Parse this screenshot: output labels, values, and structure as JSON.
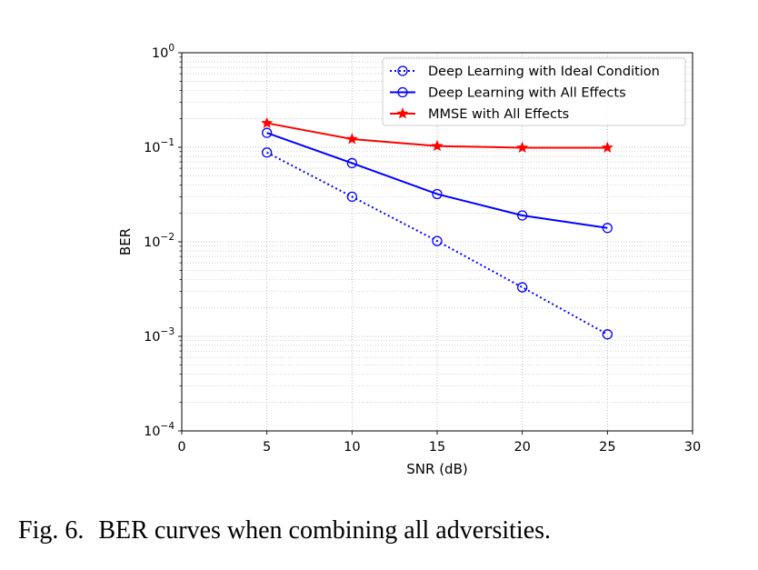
{
  "chart_data": {
    "type": "line",
    "xlabel": "SNR (dB)",
    "ylabel": "BER",
    "xlim": [
      0,
      30
    ],
    "ylim": [
      0.0001,
      1
    ],
    "yscale": "log",
    "grid": true,
    "legend_position": "top-right",
    "x_ticks": [
      0,
      5,
      10,
      15,
      20,
      25,
      30
    ],
    "y_ticks": [
      {
        "base": "10",
        "exp": "0",
        "value": 1
      },
      {
        "base": "10",
        "exp": "−1",
        "value": 0.1
      },
      {
        "base": "10",
        "exp": "−2",
        "value": 0.01
      },
      {
        "base": "10",
        "exp": "−3",
        "value": 0.001
      },
      {
        "base": "10",
        "exp": "−4",
        "value": 0.0001
      }
    ],
    "x": [
      5,
      10,
      15,
      20,
      25
    ],
    "series": [
      {
        "name": "Deep Learning with Ideal Condition",
        "values": [
          0.088,
          0.03,
          0.0102,
          0.0033,
          0.00105
        ],
        "color": "#0000ff",
        "line_style": "dotted",
        "marker": "circle"
      },
      {
        "name": "Deep Learning with All Effects",
        "values": [
          0.142,
          0.068,
          0.032,
          0.019,
          0.014
        ],
        "color": "#0000ff",
        "line_style": "solid",
        "marker": "circle"
      },
      {
        "name": "MMSE with All Effects",
        "values": [
          0.18,
          0.122,
          0.103,
          0.099,
          0.099
        ],
        "color": "#ff0000",
        "line_style": "solid",
        "marker": "star"
      }
    ]
  },
  "caption": {
    "label": "Fig. 6.",
    "text": "BER curves when combining all adversities."
  }
}
